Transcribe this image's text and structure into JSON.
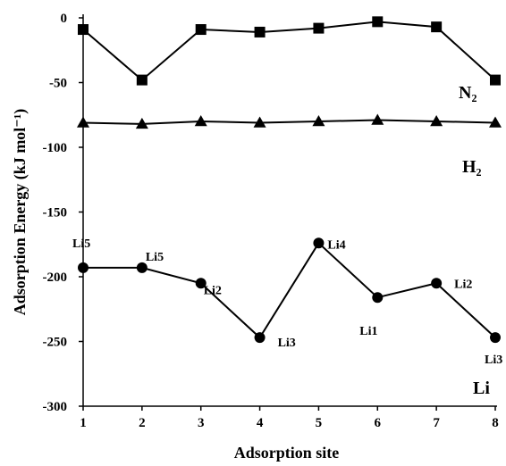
{
  "chart_data": {
    "type": "line",
    "xlabel": "Adsorption site",
    "ylabel": "Adsorption Energy (kJ mol⁻¹)",
    "x": [
      1,
      2,
      3,
      4,
      5,
      6,
      7,
      8
    ],
    "xlim": [
      1,
      8
    ],
    "ylim": [
      -300,
      0
    ],
    "yticks": [
      0,
      -50,
      -100,
      -150,
      -200,
      -250,
      -300
    ],
    "xticks": [
      1,
      2,
      3,
      4,
      5,
      6,
      7,
      8
    ],
    "grid": false,
    "series": [
      {
        "name": "N₂",
        "marker": "square",
        "values": [
          -9,
          -48,
          -9,
          -11,
          -8,
          -3,
          -7,
          -48
        ]
      },
      {
        "name": "H₂",
        "marker": "triangle",
        "values": [
          -81,
          -82,
          -80,
          -81,
          -80,
          -79,
          -80,
          -81
        ]
      },
      {
        "name": "Li",
        "marker": "circle",
        "values": [
          -193,
          -193,
          -205,
          -247,
          -174,
          -216,
          -205,
          -247
        ],
        "point_labels": [
          "Li5",
          "Li5",
          "Li2",
          "Li3",
          "Li4",
          "Li1",
          "Li2",
          "Li3"
        ]
      }
    ]
  }
}
